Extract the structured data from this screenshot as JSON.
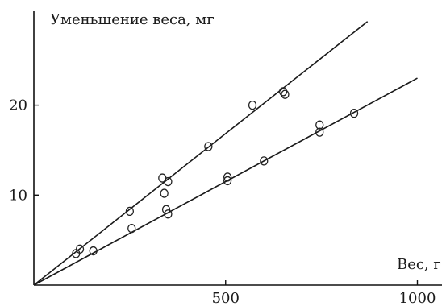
{
  "chart_data": {
    "type": "scatter",
    "title": "",
    "ylabel": "Уменьшение веса, мг",
    "xlabel": "Вес, г",
    "xlim": [
      0,
      1050
    ],
    "ylim": [
      0,
      30
    ],
    "x_ticks": [
      {
        "value": 500,
        "label": "500"
      },
      {
        "value": 1000,
        "label": "1000"
      }
    ],
    "y_ticks": [
      {
        "value": 10,
        "label": "10"
      },
      {
        "value": 20,
        "label": "20"
      }
    ],
    "grid": false,
    "series": [
      {
        "marker": "circle",
        "points": [
          [
            110,
            3.5
          ],
          [
            120,
            4.0
          ],
          [
            250,
            8.2
          ],
          [
            335,
            11.9
          ],
          [
            340,
            10.2
          ],
          [
            350,
            11.5
          ],
          [
            455,
            15.4
          ],
          [
            570,
            20.0
          ],
          [
            650,
            21.5
          ],
          [
            655,
            21.2
          ]
        ],
        "fit": {
          "x": [
            0,
            870
          ],
          "y": [
            0,
            29.3
          ]
        }
      },
      {
        "marker": "circle",
        "points": [
          [
            155,
            3.8
          ],
          [
            255,
            6.3
          ],
          [
            345,
            8.4
          ],
          [
            350,
            7.9
          ],
          [
            505,
            12.0
          ],
          [
            505,
            11.6
          ],
          [
            600,
            13.8
          ],
          [
            745,
            17.8
          ],
          [
            745,
            17.0
          ],
          [
            835,
            19.1
          ]
        ],
        "fit": {
          "x": [
            0,
            1000
          ],
          "y": [
            0,
            23.0
          ]
        }
      }
    ]
  },
  "colors": {
    "ink": "#1a1a1a",
    "background": "#ffffff"
  }
}
